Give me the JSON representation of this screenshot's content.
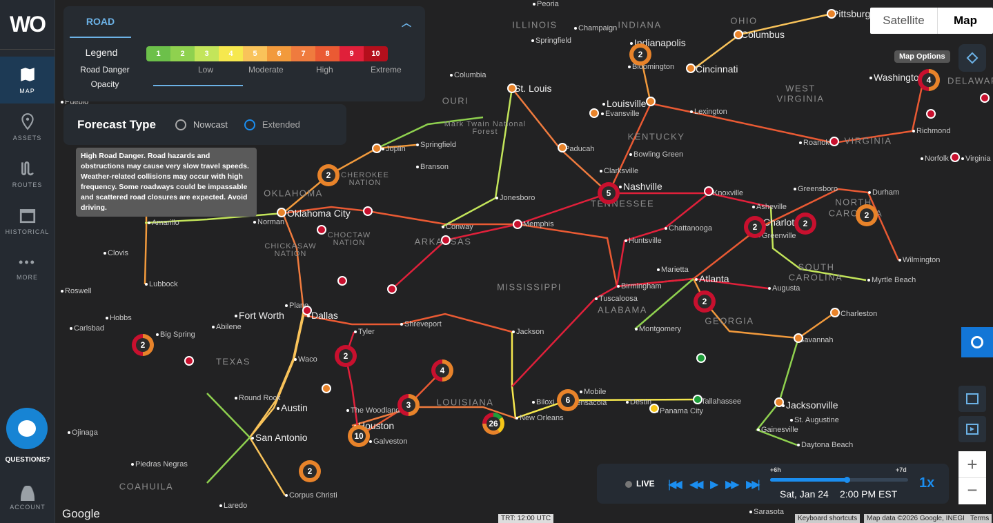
{
  "app": {
    "logo": "WO"
  },
  "sidebar": {
    "items": [
      {
        "label": "MAP",
        "icon": "map-icon",
        "active": true
      },
      {
        "label": "ASSETS",
        "icon": "pin-icon"
      },
      {
        "label": "ROUTES",
        "icon": "route-icon"
      },
      {
        "label": "HISTORICAL",
        "icon": "calendar-icon"
      },
      {
        "label": "MORE",
        "icon": "more-icon"
      }
    ],
    "questions": "QUESTIONS?",
    "account": "ACCOUNT"
  },
  "panel": {
    "tab": "ROAD",
    "legend_label": "Legend",
    "road_danger_label": "Road Danger",
    "opacity_label": "Opacity",
    "scale": [
      {
        "v": "1",
        "c": "#6cc04a"
      },
      {
        "v": "2",
        "c": "#8fd14f"
      },
      {
        "v": "3",
        "c": "#c3e55a"
      },
      {
        "v": "4",
        "c": "#f6e84e"
      },
      {
        "v": "5",
        "c": "#f9c35a"
      },
      {
        "v": "6",
        "c": "#f29a3c"
      },
      {
        "v": "7",
        "c": "#ef7b3e"
      },
      {
        "v": "8",
        "c": "#ea5a33"
      },
      {
        "v": "9",
        "c": "#e0203a"
      },
      {
        "v": "10",
        "c": "#b40f1c"
      }
    ],
    "levels": [
      "Low",
      "Moderate",
      "High",
      "Extreme"
    ],
    "tooltip": "High Road Danger. Road hazards and obstructions may cause very slow travel speeds. Weather-related collisions may occur with high frequency. Some roadways could be impassable and scattered road closures are expected. Avoid driving."
  },
  "forecast": {
    "title": "Forecast Type",
    "options": [
      "Nowcast",
      "Extended"
    ],
    "selected": "Extended"
  },
  "map_type": {
    "options": [
      "Satellite",
      "Map"
    ],
    "selected": "Map"
  },
  "map_options_tooltip": "Map Options",
  "player": {
    "live": "LIVE",
    "start": "+6h",
    "end": "+7d",
    "progress": 0.56,
    "date": "Sat, Jan 24",
    "time": "2:00 PM EST",
    "speed": "1x"
  },
  "footer": {
    "google": "Google",
    "trt": "TRT: 12:00 UTC",
    "shortcuts": "Keyboard shortcuts",
    "mapdata": "Map data ©2026 Google, INEGI",
    "terms": "Terms"
  },
  "colors": {
    "accent": "#1b8ef0",
    "red": "#c8102e",
    "orange": "#e8832a"
  },
  "cities": [
    "Peoria",
    "Champaign",
    "Indianapolis",
    "Springfield",
    "Bloomington",
    "Cincinnati",
    "Columbus",
    "Pittsburgh",
    "St. Louis",
    "Columbia",
    "Louisville",
    "Evansville",
    "Lexington",
    "Washington",
    "Richmond",
    "Norfolk",
    "Virginia Beach",
    "Roanoke",
    "Springfield",
    "Joplin",
    "Branson",
    "Paducah",
    "Bowling Green",
    "Clarksville",
    "Nashville",
    "Knoxville",
    "Greensboro",
    "Durham",
    "Asheville",
    "Charlotte",
    "Greenville",
    "Chattanooga",
    "Huntsville",
    "Jonesboro",
    "Memphis",
    "Conway",
    "Oklahoma City",
    "Norman",
    "Amarillo",
    "Clovis",
    "Lubbock",
    "Roswell",
    "Hobbs",
    "Carlsbad",
    "Big Spring",
    "Abilene",
    "Fort Worth",
    "Dallas",
    "Plano",
    "Tyler",
    "Shreveport",
    "Waco",
    "Round Rock",
    "Austin",
    "San Antonio",
    "Houston",
    "The Woodlands",
    "Galveston",
    "Corpus Christi",
    "Laredo",
    "Ojinaga",
    "Piedras Negras",
    "Atlanta",
    "Marietta",
    "Birmingham",
    "Tuscaloosa",
    "Montgomery",
    "Jackson",
    "Augusta",
    "Wilmington",
    "Myrtle Beach",
    "Charleston",
    "Savannah",
    "Jacksonville",
    "St. Augustine",
    "Gainesville",
    "Daytona Beach",
    "Tallahassee",
    "Panama City",
    "Destin",
    "Mobile",
    "Pensacola",
    "Biloxi",
    "New Orleans",
    "Sarasota",
    "Pueblo"
  ],
  "states": [
    "ILLINOIS",
    "INDIANA",
    "OHIO",
    "WEST",
    "VIRGINIA",
    "VIRGINIA",
    "KENTUCKY",
    "TENNESSEE",
    "NORTH",
    "CAROLINA",
    "SOUTH",
    "CAROLINA",
    "GEORGIA",
    "ALABAMA",
    "MISSISSIPPI",
    "ARKANSAS",
    "LOUISIANA",
    "TEXAS",
    "OKLAHOMA",
    "OURI",
    "DELAWARE",
    "COAHUILA"
  ],
  "nations": [
    "CHEROKEE NATION",
    "CHOCTAW NATION",
    "CHICKASAW NATION",
    "Mark Twain National Forest"
  ],
  "clusters": [
    "2",
    "2",
    "4",
    "5",
    "2",
    "2",
    "2",
    "2",
    "2",
    "2",
    "4",
    "3",
    "6",
    "26",
    "10",
    "2"
  ]
}
